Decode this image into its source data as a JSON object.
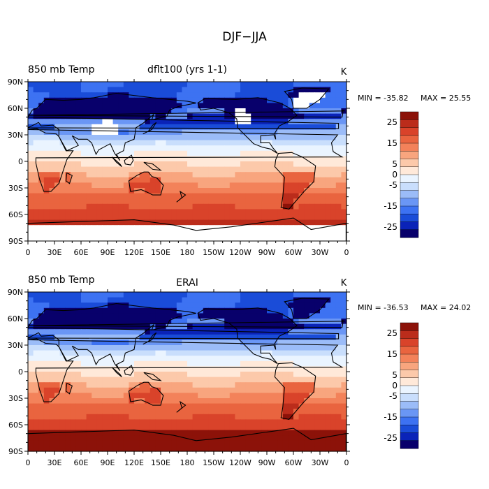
{
  "figure": {
    "title": "DJF−JJA"
  },
  "colors": {
    "levels": [
      "#08006b",
      "#0a23b8",
      "#1a4cd8",
      "#3d72f2",
      "#6a96f5",
      "#9bbcf8",
      "#c9defc",
      "#eaf4ff",
      "#ffe9d9",
      "#fcc9aa",
      "#f8a57e",
      "#f3825a",
      "#e9643f",
      "#d9432a",
      "#bb2c1b",
      "#8c1209"
    ],
    "land_outline": "#000000",
    "missing": "#ffffff"
  },
  "chart_data": [
    {
      "type": "heatmap",
      "projection": "cylindrical equidistant",
      "left_title": "850 mb Temp",
      "center_title": "dflt100 (yrs 1-1)",
      "units": "K",
      "stats": {
        "min_label": "MIN = -35.82",
        "max_label": "MAX =  25.55",
        "min": -35.82,
        "max": 25.55
      },
      "lon_range": [
        0,
        360
      ],
      "lat_range": [
        -90,
        90
      ],
      "x_ticks": [
        "0",
        "30E",
        "60E",
        "90E",
        "120E",
        "150E",
        "180",
        "150W",
        "120W",
        "90W",
        "60W",
        "30W",
        "0"
      ],
      "y_ticks": [
        "90N",
        "60N",
        "30N",
        "0",
        "30S",
        "60S",
        "90S"
      ],
      "colorbar": {
        "levels": [
          -30,
          -25,
          -20,
          -15,
          -10,
          -5,
          0,
          5,
          10,
          15,
          20,
          25,
          30
        ],
        "labels": [
          "25",
          "15",
          "5",
          "0",
          "-5",
          "-15",
          "-25"
        ]
      },
      "field_model": "continental_seasonal_contrast",
      "missing_regions": [
        "Tibetan Plateau / central Asia",
        "Greenland",
        "North American Rockies",
        "Antarctic plateau"
      ]
    },
    {
      "type": "heatmap",
      "projection": "cylindrical equidistant",
      "left_title": "850 mb Temp",
      "center_title": "ERAI",
      "units": "K",
      "stats": {
        "min_label": "MIN = -36.53",
        "max_label": "MAX =  24.02",
        "min": -36.53,
        "max": 24.02
      },
      "lon_range": [
        0,
        360
      ],
      "lat_range": [
        -90,
        90
      ],
      "x_ticks": [
        "0",
        "30E",
        "60E",
        "90E",
        "120E",
        "150E",
        "180",
        "150W",
        "120W",
        "90W",
        "60W",
        "30W",
        "0"
      ],
      "y_ticks": [
        "90N",
        "60N",
        "30N",
        "0",
        "30S",
        "60S",
        "90S"
      ],
      "colorbar": {
        "levels": [
          -30,
          -25,
          -20,
          -15,
          -10,
          -5,
          0,
          5,
          10,
          15,
          20,
          25,
          30
        ],
        "labels": [
          "25",
          "15",
          "5",
          "0",
          "-5",
          "-15",
          "-25"
        ]
      },
      "field_model": "continental_seasonal_contrast",
      "missing_regions": []
    }
  ]
}
